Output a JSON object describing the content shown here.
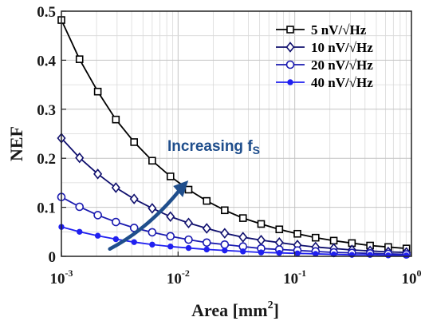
{
  "chart_data": {
    "type": "line",
    "xscale": "log",
    "xlim": [
      0.001,
      1
    ],
    "ylim": [
      0,
      0.5
    ],
    "xlabel": "Area [mm",
    "xlabel_sup": "2",
    "xlabel_end": "]",
    "ylabel": "NEF",
    "grid": true,
    "legend_position": "top-right",
    "x_tick_base": "10",
    "x_ticks": [
      {
        "value": 0.001,
        "exp": "-3"
      },
      {
        "value": 0.01,
        "exp": "-2"
      },
      {
        "value": 0.1,
        "exp": "-1"
      },
      {
        "value": 1,
        "exp": "0"
      }
    ],
    "y_ticks": [
      {
        "value": 0,
        "label": "0"
      },
      {
        "value": 0.1,
        "label": "0.1"
      },
      {
        "value": 0.2,
        "label": "0.2"
      },
      {
        "value": 0.3,
        "label": "0.3"
      },
      {
        "value": 0.4,
        "label": "0.4"
      },
      {
        "value": 0.5,
        "label": "0.5"
      }
    ],
    "x": [
      0.001,
      0.00143,
      0.00205,
      0.00293,
      0.0042,
      0.006,
      0.0086,
      0.0123,
      0.0176,
      0.0251,
      0.036,
      0.0515,
      0.0737,
      0.1054,
      0.1508,
      0.2159,
      0.3089,
      0.442,
      0.6326,
      0.9053
    ],
    "series": [
      {
        "name": "5 nV/√Hz",
        "color": "#000000",
        "marker": "square",
        "values": [
          0.482,
          0.402,
          0.336,
          0.279,
          0.233,
          0.195,
          0.163,
          0.136,
          0.113,
          0.094,
          0.078,
          0.066,
          0.055,
          0.046,
          0.038,
          0.032,
          0.027,
          0.022,
          0.019,
          0.016
        ]
      },
      {
        "name": "10 nV/√Hz",
        "color": "#10106e",
        "marker": "diamond",
        "values": [
          0.241,
          0.201,
          0.168,
          0.14,
          0.117,
          0.098,
          0.081,
          0.068,
          0.057,
          0.047,
          0.039,
          0.033,
          0.028,
          0.023,
          0.019,
          0.016,
          0.013,
          0.011,
          0.009,
          0.008
        ]
      },
      {
        "name": "20 nV/√Hz",
        "color": "#1a1ab0",
        "marker": "circle",
        "values": [
          0.121,
          0.101,
          0.084,
          0.07,
          0.058,
          0.049,
          0.041,
          0.034,
          0.028,
          0.024,
          0.02,
          0.016,
          0.014,
          0.012,
          0.01,
          0.008,
          0.007,
          0.006,
          0.005,
          0.004
        ]
      },
      {
        "name": "40 nV/√Hz",
        "color": "#2020f0",
        "marker": "dot",
        "values": [
          0.06,
          0.05,
          0.042,
          0.035,
          0.029,
          0.024,
          0.02,
          0.017,
          0.014,
          0.012,
          0.01,
          0.008,
          0.007,
          0.006,
          0.005,
          0.004,
          0.003,
          0.003,
          0.002,
          0.002
        ]
      }
    ],
    "annotation": {
      "text": "Increasing f",
      "subscript": "S",
      "arrow_from": [
        0.0026,
        0.015
      ],
      "arrow_to": [
        0.0115,
        0.145
      ]
    }
  },
  "colors": {
    "annotation": "#1f4e8c",
    "grid": "#d9d9d9"
  }
}
